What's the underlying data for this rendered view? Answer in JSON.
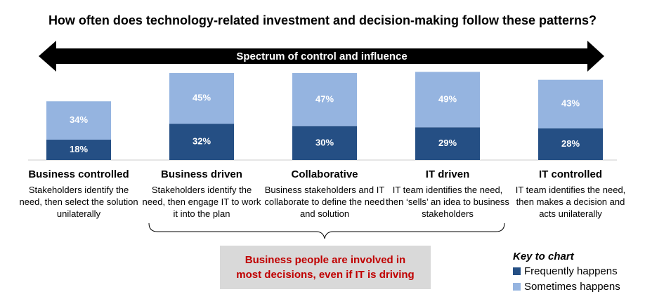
{
  "chart_data": {
    "type": "stacked_bar",
    "title": "How often does technology-related investment and decision-making follow these patterns?",
    "arrow_label": "Spectrum of control and influence",
    "categories": [
      "Business controlled",
      "Business driven",
      "Collaborative",
      "IT driven",
      "IT controlled"
    ],
    "descriptions": [
      "Stakeholders identify the need, then select the solution unilaterally",
      "Stakeholders identify the need, then engage IT to work it into the plan",
      "Business stakeholders and IT collaborate to define the need and solution",
      "IT team identifies the need, then ‘sells’ an idea to business stakeholders",
      "IT team identifies the need, then makes a decision and acts unilaterally"
    ],
    "series": [
      {
        "name": "Frequently happens",
        "color": "#254f84",
        "values": [
          18,
          32,
          30,
          29,
          28
        ],
        "value_labels": [
          "18%",
          "32%",
          "30%",
          "29%",
          "28%"
        ]
      },
      {
        "name": "Sometimes happens",
        "color": "#95b4e0",
        "values": [
          34,
          45,
          47,
          49,
          43
        ],
        "value_labels": [
          "34%",
          "45%",
          "47%",
          "49%",
          "43%"
        ]
      }
    ],
    "callout": "Business people are involved in most decisions, even if IT is driving",
    "legend_title": "Key to chart",
    "legend": "bottom-right"
  }
}
